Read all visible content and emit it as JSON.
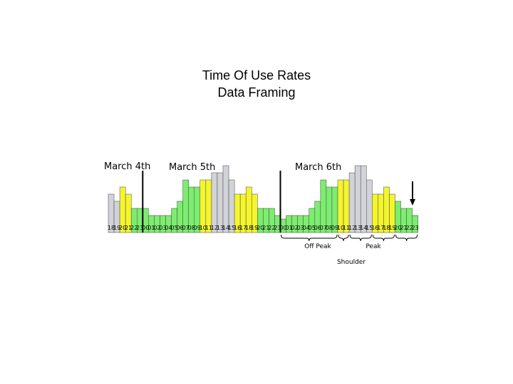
{
  "title": [
    "Time Of Use Rates",
    "Data Framing"
  ],
  "day_labels": [
    "March 4th",
    "March 5th",
    "March 6th"
  ],
  "legend": {
    "off_peak": "Off Peak",
    "peak": "Peak",
    "shoulder": "Shoulder"
  },
  "colors": {
    "off_peak": "#7ded6f",
    "shoulder": "#f5f52e",
    "peak": "#d2d3d8",
    "outline": "#444444"
  },
  "chart_data": {
    "type": "bar",
    "title": "Time Of Use Rates Data Framing",
    "categories": [
      "18",
      "19",
      "20",
      "21",
      "22",
      "23",
      "00",
      "01",
      "02",
      "03",
      "04",
      "05",
      "06",
      "07",
      "08",
      "09",
      "10",
      "11",
      "12",
      "13",
      "14",
      "15",
      "16",
      "17",
      "18",
      "19",
      "20",
      "21",
      "22",
      "23",
      "00",
      "01",
      "02",
      "03",
      "04",
      "05",
      "06",
      "07",
      "08",
      "09",
      "10",
      "11",
      "12",
      "13",
      "14",
      "15",
      "16",
      "17",
      "18",
      "19",
      "20",
      "21",
      "22",
      "23"
    ],
    "values": [
      4,
      3,
      5,
      4,
      2,
      2,
      2,
      1,
      1,
      1,
      1,
      2,
      3,
      6,
      5,
      5,
      6,
      6,
      7,
      7,
      8,
      6,
      4,
      4,
      5,
      4,
      2,
      2,
      2,
      1,
      0.5,
      1,
      1,
      1,
      1,
      2,
      3,
      6,
      5,
      5,
      6,
      6,
      7,
      8,
      8,
      6,
      4,
      4,
      5,
      4,
      3,
      2,
      2,
      1
    ],
    "tariff": [
      "peak",
      "peak",
      "shoulder",
      "shoulder",
      "offpeak",
      "offpeak",
      "offpeak",
      "offpeak",
      "offpeak",
      "offpeak",
      "offpeak",
      "offpeak",
      "offpeak",
      "offpeak",
      "offpeak",
      "offpeak",
      "shoulder",
      "shoulder",
      "peak",
      "peak",
      "peak",
      "peak",
      "shoulder",
      "shoulder",
      "shoulder",
      "shoulder",
      "offpeak",
      "offpeak",
      "offpeak",
      "offpeak",
      "offpeak",
      "offpeak",
      "offpeak",
      "offpeak",
      "offpeak",
      "offpeak",
      "offpeak",
      "offpeak",
      "offpeak",
      "offpeak",
      "shoulder",
      "shoulder",
      "peak",
      "peak",
      "peak",
      "peak",
      "shoulder",
      "shoulder",
      "shoulder",
      "shoulder",
      "offpeak",
      "offpeak",
      "offpeak",
      "offpeak"
    ],
    "day_boundaries_after_index": [
      5,
      29
    ],
    "grid": false
  }
}
